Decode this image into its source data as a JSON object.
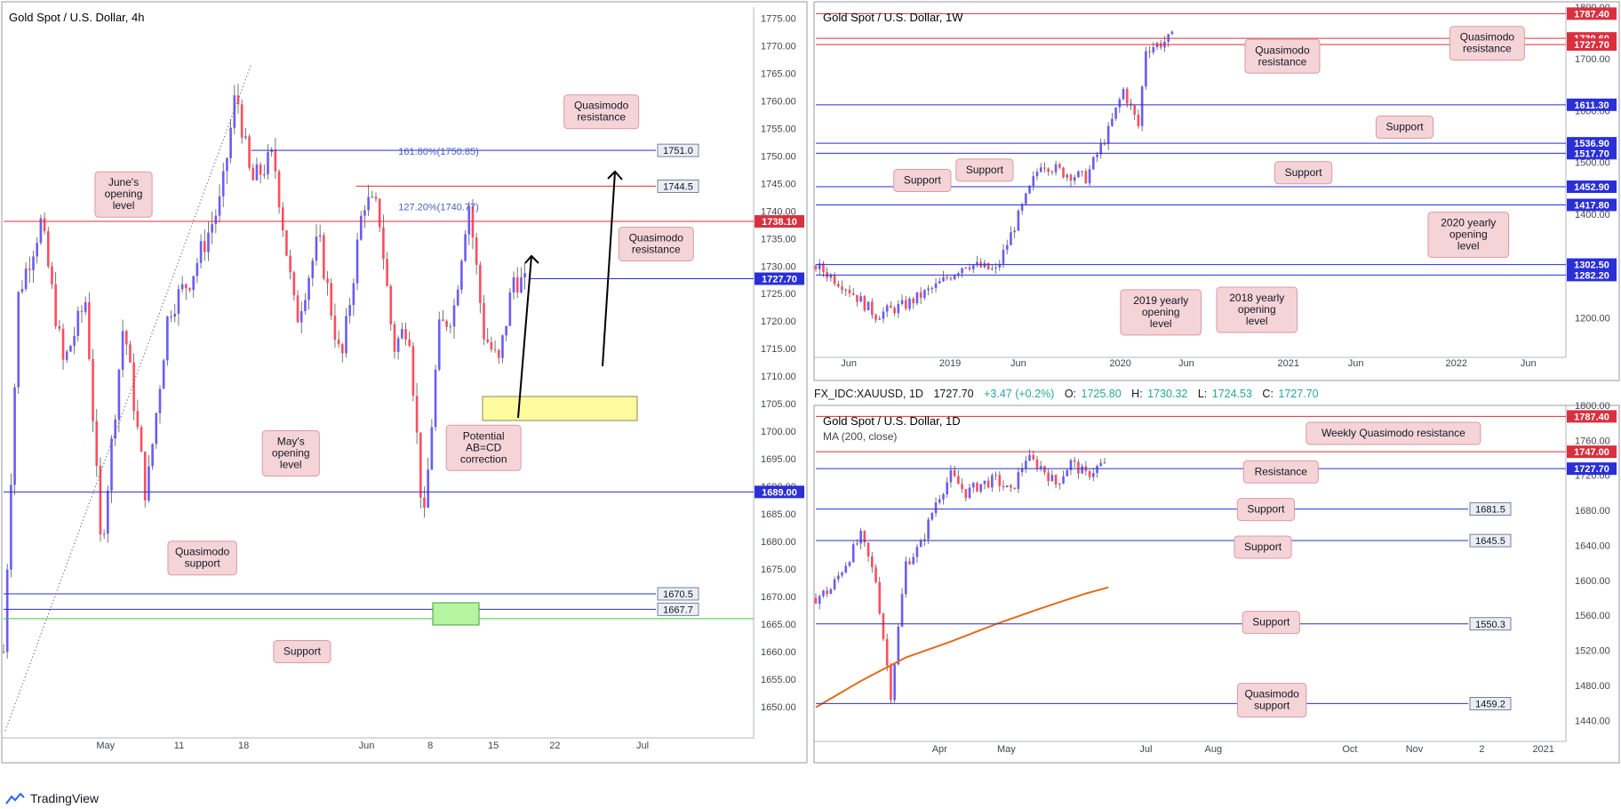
{
  "app": {
    "brand": "TradingView"
  },
  "colors": {
    "bull": "#6a5cf5",
    "bear": "#ff4d5e",
    "red_level": "#d9303f",
    "blue_level": "#2a2fd6",
    "green_level": "#3ec93e",
    "ma": "#e06c1b",
    "annot_bg": "#f5d4d8",
    "annot_border": "#d99aa5"
  },
  "chart_data": [
    {
      "id": "4h",
      "type": "candlestick",
      "title": "Gold Spot / U.S. Dollar, 4h",
      "ylim": [
        1645,
        1777
      ],
      "y_ticks": [
        1650,
        1655,
        1660,
        1665,
        1670,
        1675,
        1680,
        1685,
        1690,
        1695,
        1700,
        1705,
        1710,
        1715,
        1720,
        1725,
        1730,
        1735,
        1740,
        1745,
        1750,
        1755,
        1760,
        1765,
        1770,
        1775
      ],
      "x_ticks": [
        {
          "label": "May",
          "x": 0.136
        },
        {
          "label": "11",
          "x": 0.234
        },
        {
          "label": "18",
          "x": 0.32
        },
        {
          "label": "Jun",
          "x": 0.484
        },
        {
          "label": "8",
          "x": 0.569
        },
        {
          "label": "15",
          "x": 0.653
        },
        {
          "label": "22",
          "x": 0.735
        },
        {
          "label": "Jul",
          "x": 0.852
        }
      ],
      "series_path": [
        [
          0.0,
          1660
        ],
        [
          0.02,
          1725
        ],
        [
          0.05,
          1738
        ],
        [
          0.08,
          1712
        ],
        [
          0.11,
          1724
        ],
        [
          0.13,
          1678
        ],
        [
          0.16,
          1720
        ],
        [
          0.19,
          1688
        ],
        [
          0.22,
          1722
        ],
        [
          0.25,
          1728
        ],
        [
          0.29,
          1742
        ],
        [
          0.31,
          1762
        ],
        [
          0.33,
          1745
        ],
        [
          0.36,
          1750
        ],
        [
          0.39,
          1720
        ],
        [
          0.42,
          1735
        ],
        [
          0.45,
          1712
        ],
        [
          0.48,
          1742
        ],
        [
          0.5,
          1740
        ],
        [
          0.52,
          1715
        ],
        [
          0.54,
          1720
        ],
        [
          0.56,
          1682
        ],
        [
          0.58,
          1718
        ],
        [
          0.6,
          1722
        ],
        [
          0.62,
          1742
        ],
        [
          0.64,
          1718
        ],
        [
          0.66,
          1712
        ],
        [
          0.68,
          1728
        ],
        [
          0.7,
          1726
        ]
      ],
      "levels": [
        {
          "price": 1738.1,
          "label": "1738.10",
          "style": "red-solid",
          "x0": 0.0
        },
        {
          "price": 1727.7,
          "label": "1727.70",
          "style": "blue-solid",
          "x0": 0.7
        },
        {
          "price": 1689.0,
          "label": "1689.00",
          "style": "blue-solid",
          "x0": 0.0
        },
        {
          "price": 1751.0,
          "label": "1751.0",
          "style": "thin-blue",
          "x0": 0.33
        },
        {
          "price": 1744.5,
          "label": "1744.5",
          "style": "thin-red",
          "x0": 0.47
        },
        {
          "price": 1670.5,
          "label": "1670.5",
          "style": "thin-blue",
          "x0": 0.0
        },
        {
          "price": 1667.7,
          "label": "1667.7",
          "style": "thin-blue",
          "x0": 0.0
        },
        {
          "price": 1666.0,
          "label": "",
          "style": "green",
          "x0": 0.0
        }
      ],
      "fib_labels": [
        {
          "text": "161.80%(1750.85)",
          "price": 1750.85
        },
        {
          "text": "127.20%(1740.77)",
          "price": 1740.77
        }
      ],
      "annotations": [
        {
          "text": "Quasimodo resistance",
          "x": 0.797,
          "price": 1758
        },
        {
          "text": "June's opening level",
          "x": 0.16,
          "price": 1743
        },
        {
          "text": "Quasimodo resistance",
          "x": 0.87,
          "price": 1734
        },
        {
          "text": "May's opening level",
          "x": 0.383,
          "price": 1696
        },
        {
          "text": "Potential AB=CD correction",
          "x": 0.64,
          "price": 1697
        },
        {
          "text": "Quasimodo support",
          "x": 0.265,
          "price": 1677
        },
        {
          "text": "Support",
          "x": 0.398,
          "price": 1660
        }
      ]
    },
    {
      "id": "1w",
      "type": "candlestick",
      "title": "Gold Spot / U.S. Dollar, 1W",
      "ylim": [
        1130,
        1800
      ],
      "y_ticks": [
        1200,
        1300,
        1400,
        1500,
        1600,
        1700,
        1800
      ],
      "x_ticks": [
        {
          "label": "Jun",
          "x": 0.044
        },
        {
          "label": "2019",
          "x": 0.179
        },
        {
          "label": "Jun",
          "x": 0.27
        },
        {
          "label": "2020",
          "x": 0.406
        },
        {
          "label": "Jun",
          "x": 0.494
        },
        {
          "label": "2021",
          "x": 0.63
        },
        {
          "label": "Jun",
          "x": 0.72
        },
        {
          "label": "2022",
          "x": 0.854
        },
        {
          "label": "Jun",
          "x": 0.95
        }
      ],
      "series_path": [
        [
          0.0,
          1300
        ],
        [
          0.04,
          1260
        ],
        [
          0.08,
          1205
        ],
        [
          0.12,
          1225
        ],
        [
          0.16,
          1260
        ],
        [
          0.2,
          1305
        ],
        [
          0.24,
          1290
        ],
        [
          0.27,
          1395
        ],
        [
          0.3,
          1500
        ],
        [
          0.33,
          1480
        ],
        [
          0.36,
          1470
        ],
        [
          0.39,
          1560
        ],
        [
          0.41,
          1640
        ],
        [
          0.43,
          1570
        ],
        [
          0.44,
          1720
        ],
        [
          0.46,
          1730
        ],
        [
          0.48,
          1745
        ]
      ],
      "levels": [
        {
          "price": 1787.4,
          "label": "1787.40",
          "style": "red-solid"
        },
        {
          "price": 1739.6,
          "label": "1739.60",
          "style": "red-solid"
        },
        {
          "price": 1727.7,
          "label": "1727.70",
          "style": "red-solid"
        },
        {
          "price": 1611.3,
          "label": "1611.30",
          "style": "blue-solid"
        },
        {
          "price": 1536.9,
          "label": "1536.90",
          "style": "blue-solid"
        },
        {
          "price": 1517.7,
          "label": "1517.70",
          "style": "blue-solid"
        },
        {
          "price": 1452.9,
          "label": "1452.90",
          "style": "blue-solid"
        },
        {
          "price": 1417.8,
          "label": "1417.80",
          "style": "blue-solid"
        },
        {
          "price": 1302.5,
          "label": "1302.50",
          "style": "blue-solid"
        },
        {
          "price": 1282.2,
          "label": "1282.20",
          "style": "blue-solid"
        }
      ],
      "annotations": [
        {
          "text": "Quasimodo resistance",
          "x": 0.622,
          "price": 1705
        },
        {
          "text": "Quasimodo resistance",
          "x": 0.895,
          "price": 1730
        },
        {
          "text": "Support",
          "x": 0.785,
          "price": 1568
        },
        {
          "text": "Support",
          "x": 0.65,
          "price": 1480
        },
        {
          "text": "Support",
          "x": 0.142,
          "price": 1465
        },
        {
          "text": "Support",
          "x": 0.225,
          "price": 1485
        },
        {
          "text": "2020 yearly opening level",
          "x": 0.87,
          "price": 1360
        },
        {
          "text": "2019 yearly opening level",
          "x": 0.46,
          "price": 1210
        },
        {
          "text": "2018 yearly opening level",
          "x": 0.588,
          "price": 1215
        }
      ]
    },
    {
      "id": "1d",
      "type": "candlestick",
      "title": "Gold Spot / U.S. Dollar, 1D",
      "indicator": "MA (200, close)",
      "ylim": [
        1420,
        1800
      ],
      "y_ticks": [
        1440,
        1480,
        1520,
        1560,
        1600,
        1640,
        1680,
        1720,
        1760,
        1800
      ],
      "x_ticks": [
        {
          "label": "Apr",
          "x": 0.165
        },
        {
          "label": "May",
          "x": 0.254
        },
        {
          "label": "Jul",
          "x": 0.44
        },
        {
          "label": "Aug",
          "x": 0.53
        },
        {
          "label": "Oct",
          "x": 0.712
        },
        {
          "label": "Nov",
          "x": 0.798
        },
        {
          "label": "2",
          "x": 0.888
        },
        {
          "label": "2021",
          "x": 0.97
        }
      ],
      "series_path": [
        [
          0.0,
          1580
        ],
        [
          0.02,
          1590
        ],
        [
          0.04,
          1620
        ],
        [
          0.06,
          1650
        ],
        [
          0.08,
          1600
        ],
        [
          0.1,
          1470
        ],
        [
          0.12,
          1620
        ],
        [
          0.14,
          1640
        ],
        [
          0.16,
          1690
        ],
        [
          0.18,
          1720
        ],
        [
          0.2,
          1700
        ],
        [
          0.22,
          1710
        ],
        [
          0.24,
          1715
        ],
        [
          0.26,
          1700
        ],
        [
          0.28,
          1740
        ],
        [
          0.3,
          1730
        ],
        [
          0.32,
          1710
        ],
        [
          0.34,
          1735
        ],
        [
          0.36,
          1720
        ],
        [
          0.38,
          1732
        ],
        [
          0.39,
          1730
        ]
      ],
      "ma_path": [
        [
          0.0,
          1455
        ],
        [
          0.06,
          1485
        ],
        [
          0.12,
          1512
        ],
        [
          0.18,
          1530
        ],
        [
          0.24,
          1550
        ],
        [
          0.3,
          1568
        ],
        [
          0.36,
          1585
        ],
        [
          0.39,
          1592
        ]
      ],
      "levels": [
        {
          "price": 1787.4,
          "label": "1787.40",
          "style": "red-solid"
        },
        {
          "price": 1747.0,
          "label": "1747.00",
          "style": "red-solid"
        },
        {
          "price": 1727.7,
          "label": "1727.70",
          "style": "blue-solid"
        },
        {
          "price": 1681.5,
          "label": "1681.5",
          "style": "thin-blue"
        },
        {
          "price": 1645.5,
          "label": "1645.5",
          "style": "thin-blue"
        },
        {
          "price": 1550.3,
          "label": "1550.3",
          "style": "thin-blue"
        },
        {
          "price": 1459.2,
          "label": "1459.2",
          "style": "thin-blue"
        }
      ],
      "annotations": [
        {
          "text": "Weekly Quasimodo resistance",
          "x": 0.77,
          "price": 1768
        },
        {
          "text": "Resistance",
          "x": 0.62,
          "price": 1724
        },
        {
          "text": "Support",
          "x": 0.6,
          "price": 1681
        },
        {
          "text": "Support",
          "x": 0.596,
          "price": 1638
        },
        {
          "text": "Support",
          "x": 0.607,
          "price": 1552
        },
        {
          "text": "Quasimodo support",
          "x": 0.608,
          "price": 1463
        }
      ]
    }
  ],
  "panels": {
    "p4h": {
      "title": "Gold Spot / U.S. Dollar, 4h"
    },
    "p1w": {
      "title": "Gold Spot / U.S. Dollar, 1W"
    },
    "p1d": {
      "title": "Gold Spot / U.S. Dollar, 1D",
      "indicator": "MA (200, close)",
      "symbol_line": {
        "symbol": "FX_IDC:XAUUSD, 1D",
        "last": "1727.70",
        "change": "+3.47 (+0.2%)",
        "o_label": "O:",
        "o": "1725.80",
        "h_label": "H:",
        "h": "1730.32",
        "l_label": "L:",
        "l": "1724.53",
        "c_label": "C:",
        "c": "1727.70"
      }
    }
  }
}
